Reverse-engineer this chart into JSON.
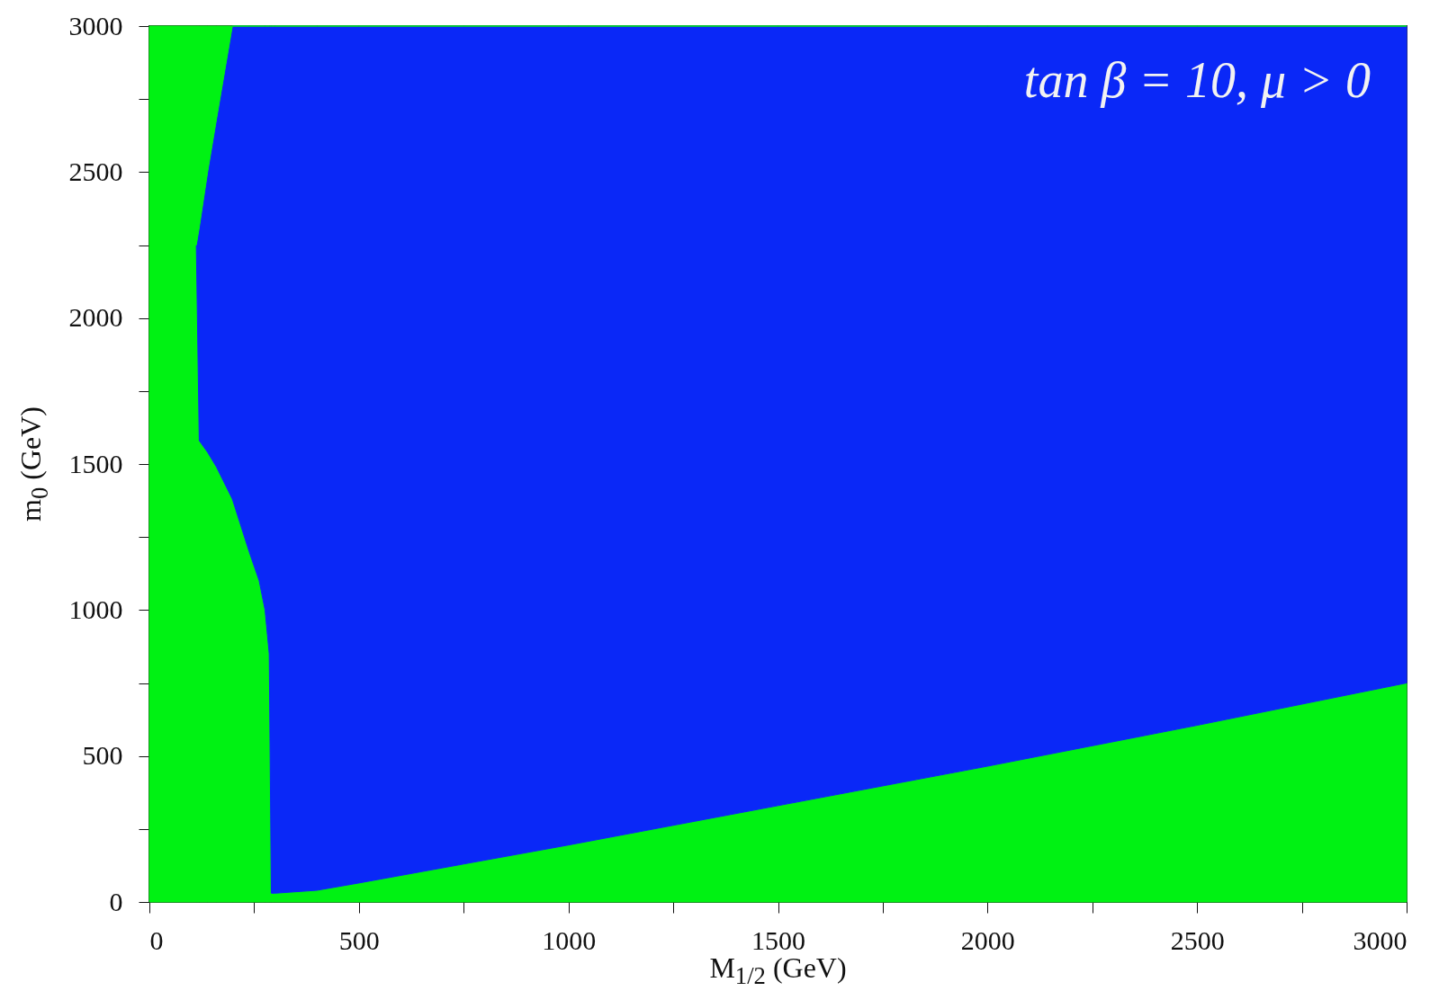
{
  "chart_data": {
    "type": "area",
    "stacked": true,
    "xlabel": "M$_{1/2}$ (GeV)",
    "ylabel": "m$_{0}$ (GeV)",
    "xlim": [
      0,
      3000
    ],
    "ylim": [
      0,
      3000
    ],
    "xticks": [
      0,
      {
        "value": 250,
        "label": null
      },
      500,
      {
        "value": 750,
        "label": null
      },
      1000,
      {
        "value": 1250,
        "label": null
      },
      1500,
      {
        "value": 1750,
        "label": null
      },
      2000,
      {
        "value": 2250,
        "label": null
      },
      2500,
      {
        "value": 2750,
        "label": null
      },
      3000
    ],
    "yticks": [
      0,
      {
        "value": 250,
        "label": null
      },
      500,
      {
        "value": 750,
        "label": null
      },
      1000,
      {
        "value": 1250,
        "label": null
      },
      1500,
      {
        "value": 1750,
        "label": null
      },
      2000,
      {
        "value": 2250,
        "label": null
      },
      2500,
      {
        "value": 2750,
        "label": null
      },
      3000
    ],
    "x": [
      0,
      112,
      119,
      139,
      160,
      198,
      238,
      262,
      276,
      286,
      291,
      300,
      400,
      500,
      750,
      1000,
      1500,
      2000,
      2500,
      3000
    ],
    "series": [
      {
        "color": "#00f213",
        "values": [
          2250,
          2250,
          1580,
          1540,
          1490,
          1380,
          1200,
          1100,
          1000,
          850,
          30,
          30,
          40,
          65,
          130,
          195,
          330,
          465,
          605,
          750
        ]
      },
      {
        "color": "#0a28f7",
        "values": [
          0,
          0,
          730,
          960,
          1190,
          1620,
          1800,
          1900,
          2000,
          2150,
          2970,
          2970,
          2960,
          2935,
          2870,
          2805,
          2670,
          2535,
          2395,
          2250
        ]
      },
      {
        "color": "#00f213",
        "values": [
          750,
          750,
          690,
          500,
          320,
          0,
          0,
          0,
          0,
          0,
          0,
          0,
          0,
          0,
          0,
          0,
          0,
          0,
          0,
          0
        ]
      }
    ],
    "annotations": [
      "tan β = 10,  μ > 0"
    ],
    "grid": false
  }
}
